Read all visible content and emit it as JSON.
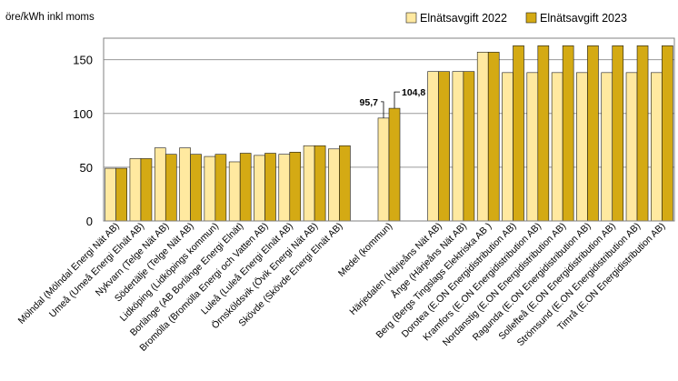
{
  "chart_data": {
    "type": "bar",
    "ylabel": "öre/kWh inkl moms",
    "ylim": [
      0,
      170
    ],
    "yticks": [
      0,
      50,
      100,
      150
    ],
    "grid": true,
    "legend_position": "top-right",
    "categories": [
      "Mölndal (Mölndal Energi Nät AB)",
      "Umeå (Umeå Energi Elnät AB)",
      "Nykvarn (Telge Nät AB)",
      "Södertälje (Telge Nät AB)",
      "Lidköping (Lidköpings kommun)",
      "Borlänge (AB Borlänge Energi Elnät)",
      "Bromölla (Bromölla Energi och Vatten AB)",
      "Luleå (Luleå Energi Elnät AB)",
      "Örnsköldsvik (Övik Energi Nät AB)",
      "Skövde (Skövde Energi Elnät AB)",
      "",
      "Medel (kommun)",
      "",
      "Härjedalen (Härjeåns Nät AB)",
      "Ånge (Härjeåns Nät AB)",
      "Berg (Bergs Tingslags Elektriska AB )",
      "Dorotea (E.ON Energidistribution AB)",
      "Kramfors (E.ON Energidistribution AB)",
      "Nordanstig (E.ON Energidistribution AB)",
      "Ragunda (E.ON Energidistribution AB)",
      "Sollefteå (E.ON Energidistribution AB)",
      "Strömsund (E.ON Energidistribution AB)",
      "Timrå (E.ON Energidistribution AB)"
    ],
    "series": [
      {
        "name": "Elnätsavgift 2022",
        "color": "#FFE9A0",
        "values": [
          49,
          58,
          68,
          68,
          60,
          55,
          61,
          62,
          70,
          67,
          null,
          95.7,
          null,
          139,
          139,
          157,
          138,
          138,
          138,
          138,
          138,
          138,
          138
        ]
      },
      {
        "name": "Elnätsavgift 2023",
        "color": "#D4AA14",
        "values": [
          49,
          58,
          62,
          62,
          62,
          63,
          63,
          64,
          70,
          70,
          null,
          104.8,
          null,
          139,
          139,
          157,
          163,
          163,
          163,
          163,
          163,
          163,
          163
        ]
      }
    ],
    "data_labels": [
      {
        "text": "95,7",
        "series": 0,
        "category": 11
      },
      {
        "text": "104,8",
        "series": 1,
        "category": 11
      }
    ],
    "legend": [
      "Elnätsavgift 2022",
      "Elnätsavgift 2023"
    ],
    "border_color": "#808080",
    "grid_color": "#9A9A9A"
  }
}
